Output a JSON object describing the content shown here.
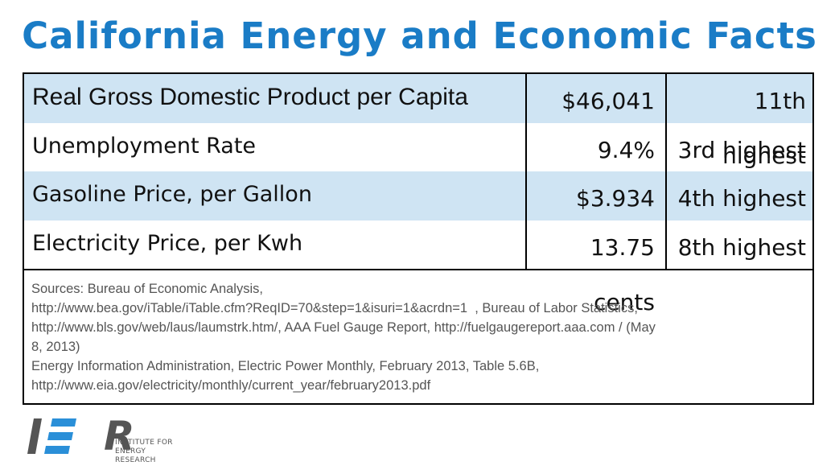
{
  "title": "California Energy and Economic Facts",
  "rows": [
    {
      "label": "Real Gross Domestic Product per Capita",
      "value": "$46,041",
      "rank": "11th highest"
    },
    {
      "label": "Unemployment Rate",
      "value": "9.4%",
      "rank": "3rd highest"
    },
    {
      "label": "Gasoline Price, per Gallon",
      "value": "$3.934",
      "rank": "4th highest"
    },
    {
      "label": "Electricity Price, per Kwh",
      "value": "13.75 cents",
      "rank": "8th highest"
    }
  ],
  "sources": [
    "Sources: Bureau of Economic Analysis,",
    "http://www.bea.gov/iTable/iTable.cfm?ReqID=70&step=1&isuri=1&acrdn=1  , Bureau of Labor Statistics,",
    "http://www.bls.gov/web/laus/laumstrk.htm/, AAA Fuel Gauge Report, http://fuelgaugereport.aaa.com / (May",
    "8, 2013)",
    "Energy Information Administration, Electric Power Monthly, February 2013, Table 5.6B,",
    "http://www.eia.gov/electricity/monthly/current_year/february2013.pdf"
  ],
  "logo": {
    "letters": "R",
    "line1": "INSTITUTE FOR",
    "line2": "ENERGY RESEARCH",
    "colors": {
      "bar_gray": "#555555",
      "bar_blue": "#2a8fd8"
    }
  },
  "colors": {
    "title": "#1a7cc6",
    "row_shade": "#cfe4f3"
  }
}
